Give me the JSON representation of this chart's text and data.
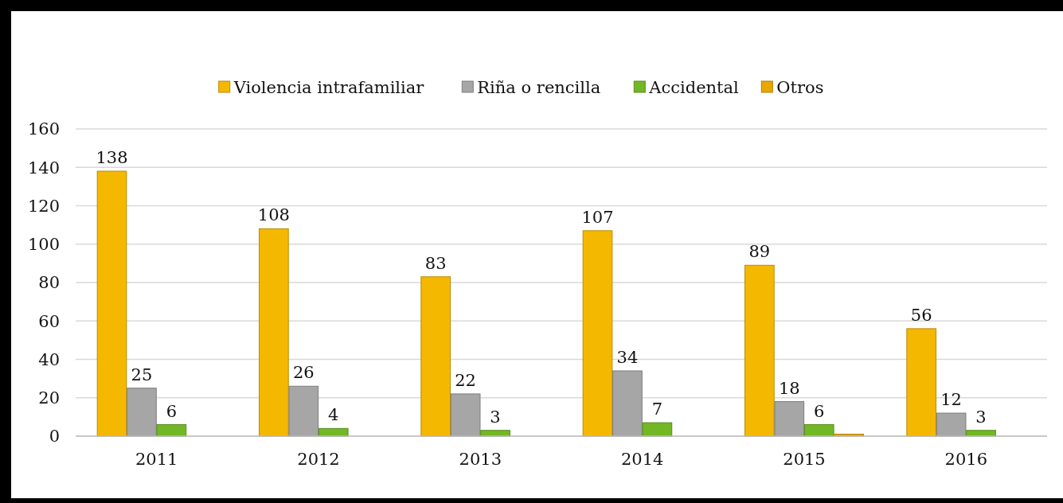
{
  "chart_data": {
    "type": "bar",
    "categories": [
      "2011",
      "2012",
      "2013",
      "2014",
      "2015",
      "2016"
    ],
    "series": [
      {
        "name": "Violencia intrafamiliar",
        "color": "#f5b800",
        "values": [
          138,
          108,
          83,
          107,
          89,
          56
        ],
        "value_labels": [
          "138",
          "108",
          "83",
          "107",
          "89",
          "56"
        ]
      },
      {
        "name": "Riña o rencilla",
        "color": "#a6a6a6",
        "values": [
          25,
          26,
          22,
          34,
          18,
          12
        ],
        "value_labels": [
          "25",
          "26",
          "22",
          "34",
          "18",
          "12"
        ]
      },
      {
        "name": "Accidental",
        "color": "#72b824",
        "values": [
          6,
          4,
          3,
          7,
          6,
          3
        ],
        "value_labels": [
          "6",
          "4",
          "3",
          "7",
          "6",
          "3"
        ]
      },
      {
        "name": "Otros",
        "color": "#e8a800",
        "values": [
          null,
          null,
          null,
          null,
          1,
          null
        ],
        "value_labels": [
          null,
          null,
          null,
          null,
          null,
          null
        ]
      }
    ],
    "ylim": [
      0,
      160
    ],
    "yticks": [
      0,
      20,
      40,
      60,
      80,
      100,
      120,
      140,
      160
    ],
    "grid": "y",
    "legend": "top"
  }
}
